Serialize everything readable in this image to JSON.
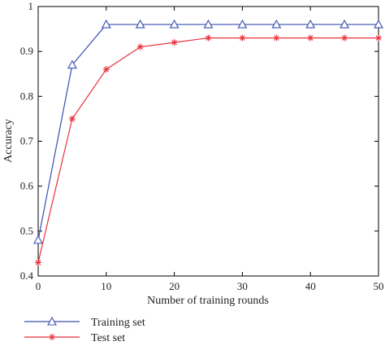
{
  "chart_data": {
    "type": "line",
    "title": "",
    "xlabel": "Number of training rounds",
    "ylabel": "Accuracy",
    "xlim": [
      0,
      50
    ],
    "ylim": [
      0.4,
      1
    ],
    "xticks": [
      0,
      10,
      20,
      30,
      40,
      50
    ],
    "yticks": [
      0.4,
      0.5,
      0.6,
      0.7,
      0.8,
      0.9,
      1
    ],
    "ytick_labels": [
      "0.4",
      "0.5",
      "0.6",
      "0.7",
      "0.8",
      "0.9",
      "1"
    ],
    "grid": false,
    "legend_position": "bottom-left, below plot",
    "series": [
      {
        "name": "Training set",
        "color": "#3a4fb0",
        "marker": "triangle",
        "x": [
          0,
          5,
          10,
          15,
          20,
          25,
          30,
          35,
          40,
          45,
          50
        ],
        "y": [
          0.48,
          0.87,
          0.96,
          0.96,
          0.96,
          0.96,
          0.96,
          0.96,
          0.96,
          0.96,
          0.96
        ]
      },
      {
        "name": "Test set",
        "color": "#e8323c",
        "marker": "star",
        "x": [
          0,
          5,
          10,
          15,
          20,
          25,
          30,
          35,
          40,
          45,
          50
        ],
        "y": [
          0.43,
          0.75,
          0.86,
          0.91,
          0.92,
          0.93,
          0.93,
          0.93,
          0.93,
          0.93,
          0.93
        ]
      }
    ]
  }
}
